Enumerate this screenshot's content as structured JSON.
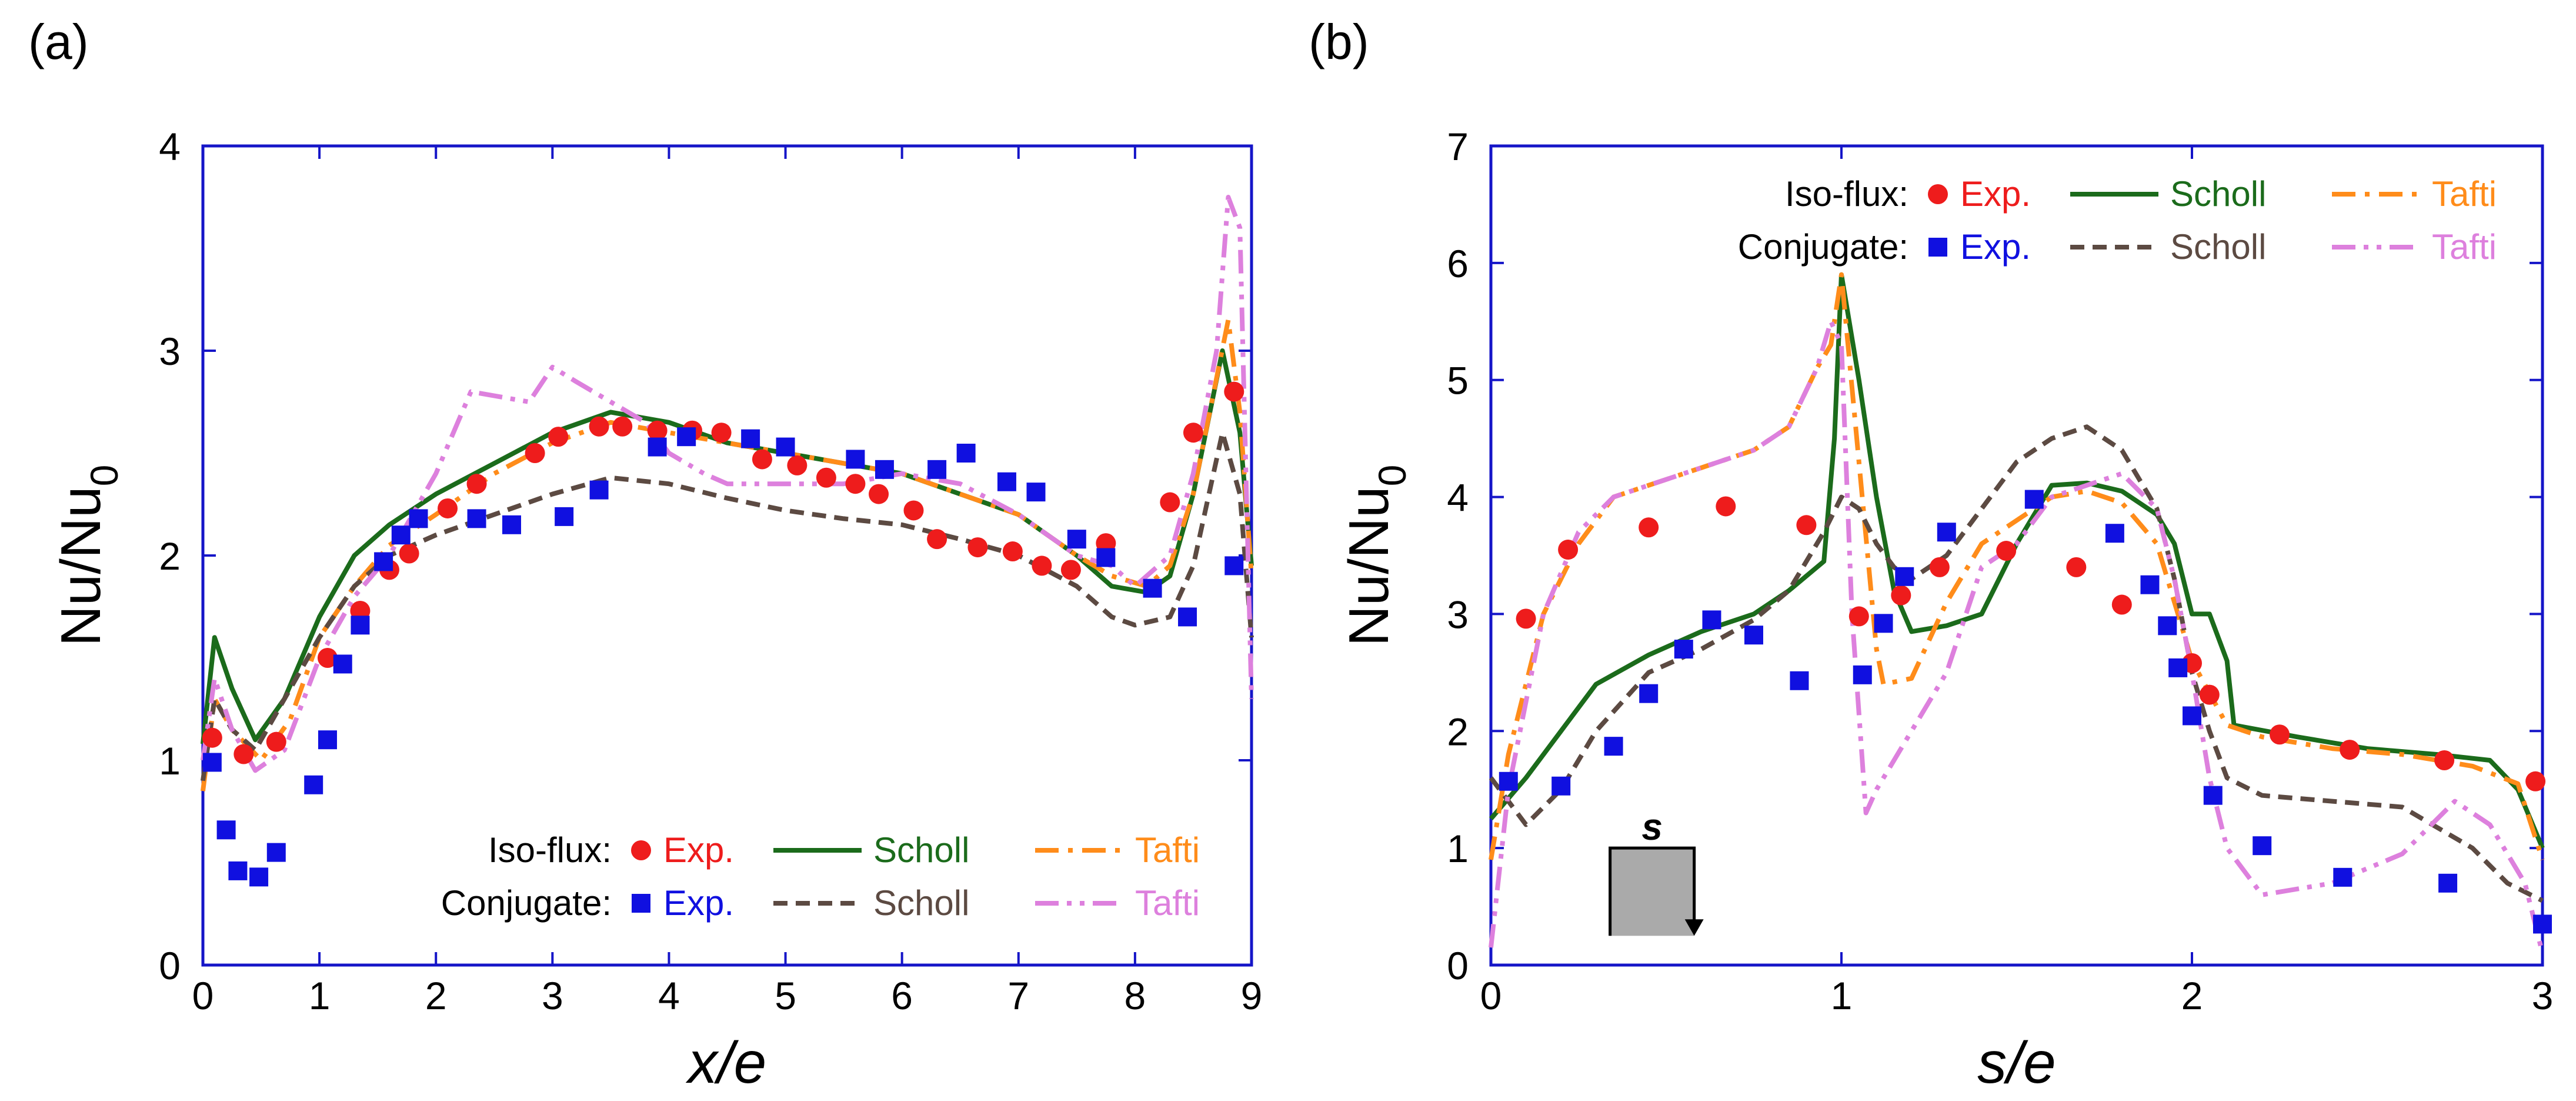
{
  "panel_labels": [
    "(a)",
    "(b)"
  ],
  "chart_data": [
    {
      "type": "line",
      "panel": "(a)",
      "xlabel": "x/e",
      "ylabel_main": "Nu/Nu",
      "ylabel_sub": "0",
      "xlim": [
        0,
        9
      ],
      "ylim": [
        0,
        4
      ],
      "xticks": [
        0,
        1,
        2,
        3,
        4,
        5,
        6,
        7,
        8,
        9
      ],
      "yticks": [
        0,
        1,
        2,
        3,
        4
      ],
      "legend": {
        "placement": "bottom-right",
        "rows": [
          {
            "label": "Iso-flux:",
            "entries": [
              "Exp.",
              "Scholl",
              "Tafti"
            ]
          },
          {
            "label": "Conjugate:",
            "entries": [
              "Exp.",
              "Scholl",
              "Tafti"
            ]
          }
        ]
      },
      "series": [
        {
          "name": "Exp.",
          "group": "Iso-flux",
          "kind": "marker-circle",
          "color": "#ee1c1c",
          "x": [
            0.08,
            0.35,
            0.63,
            1.07,
            1.35,
            1.6,
            1.77,
            2.1,
            2.35,
            2.85,
            3.05,
            3.4,
            3.6,
            3.9,
            4.2,
            4.45,
            4.8,
            5.1,
            5.35,
            5.6,
            5.8,
            6.1,
            6.3,
            6.65,
            6.95,
            7.2,
            7.45,
            7.75,
            8.3,
            8.5,
            8.85
          ],
          "y": [
            1.11,
            1.03,
            1.09,
            1.5,
            1.73,
            1.93,
            2.01,
            2.23,
            2.35,
            2.5,
            2.58,
            2.63,
            2.63,
            2.61,
            2.61,
            2.6,
            2.47,
            2.44,
            2.38,
            2.35,
            2.3,
            2.22,
            2.08,
            2.04,
            2.02,
            1.95,
            1.93,
            2.06,
            2.26,
            2.6,
            2.8
          ]
        },
        {
          "name": "Exp.",
          "group": "Conjugate",
          "kind": "marker-square",
          "color": "#1010e0",
          "x": [
            0.08,
            0.2,
            0.3,
            0.48,
            0.63,
            0.95,
            1.07,
            1.2,
            1.35,
            1.55,
            1.7,
            1.85,
            2.35,
            2.65,
            3.1,
            3.4,
            3.9,
            4.15,
            4.7,
            5.0,
            5.6,
            5.85,
            6.3,
            6.55,
            6.9,
            7.15,
            7.5,
            7.75,
            8.15,
            8.45,
            8.85
          ],
          "y": [
            0.99,
            0.66,
            0.46,
            0.43,
            0.55,
            0.88,
            1.1,
            1.47,
            1.66,
            1.97,
            2.1,
            2.18,
            2.18,
            2.15,
            2.19,
            2.32,
            2.53,
            2.58,
            2.57,
            2.53,
            2.47,
            2.42,
            2.42,
            2.5,
            2.36,
            2.31,
            2.08,
            1.99,
            1.84,
            1.7,
            1.95
          ]
        },
        {
          "name": "Scholl",
          "group": "Iso-flux",
          "kind": "line-solid",
          "color": "#1b6b1b",
          "x": [
            0.0,
            0.1,
            0.25,
            0.45,
            0.7,
            1.0,
            1.3,
            1.6,
            2.0,
            2.5,
            3.0,
            3.5,
            4.0,
            4.5,
            5.0,
            5.5,
            6.0,
            6.5,
            7.0,
            7.5,
            7.8,
            8.1,
            8.3,
            8.5,
            8.75,
            8.9,
            9.0
          ],
          "y": [
            1.08,
            1.6,
            1.35,
            1.1,
            1.3,
            1.7,
            2.0,
            2.15,
            2.3,
            2.45,
            2.6,
            2.7,
            2.65,
            2.55,
            2.5,
            2.45,
            2.4,
            2.3,
            2.2,
            2.0,
            1.85,
            1.82,
            1.9,
            2.3,
            3.0,
            2.6,
            1.95
          ]
        },
        {
          "name": "Tafti",
          "group": "Iso-flux",
          "kind": "line-dashdot",
          "color": "#ff8c1a",
          "x": [
            0.0,
            0.1,
            0.25,
            0.5,
            0.75,
            1.0,
            1.3,
            1.6,
            2.0,
            2.5,
            3.0,
            3.5,
            4.0,
            4.5,
            5.0,
            5.5,
            6.0,
            6.5,
            7.0,
            7.5,
            7.8,
            8.1,
            8.3,
            8.5,
            8.8,
            8.9,
            9.0
          ],
          "y": [
            0.85,
            1.3,
            1.15,
            1.0,
            1.2,
            1.6,
            1.85,
            2.05,
            2.2,
            2.4,
            2.55,
            2.65,
            2.6,
            2.55,
            2.5,
            2.45,
            2.4,
            2.3,
            2.2,
            2.0,
            1.9,
            1.85,
            1.95,
            2.3,
            3.15,
            2.7,
            1.9
          ]
        },
        {
          "name": "Scholl",
          "group": "Conjugate",
          "kind": "line-dashed",
          "color": "#5c4a42",
          "x": [
            0.0,
            0.1,
            0.25,
            0.45,
            0.7,
            1.0,
            1.3,
            1.6,
            2.0,
            2.5,
            3.0,
            3.5,
            4.0,
            4.5,
            5.0,
            5.5,
            6.0,
            6.5,
            7.0,
            7.5,
            7.8,
            8.0,
            8.3,
            8.5,
            8.75,
            8.9,
            9.0
          ],
          "y": [
            0.9,
            1.3,
            1.15,
            1.05,
            1.3,
            1.6,
            1.85,
            2.0,
            2.1,
            2.2,
            2.3,
            2.38,
            2.35,
            2.28,
            2.22,
            2.18,
            2.15,
            2.08,
            2.0,
            1.85,
            1.7,
            1.66,
            1.7,
            1.95,
            2.6,
            2.3,
            1.6
          ]
        },
        {
          "name": "Tafti",
          "group": "Conjugate",
          "kind": "line-dashdotdot",
          "color": "#dd80dd",
          "x": [
            0.0,
            0.1,
            0.25,
            0.45,
            0.7,
            1.0,
            1.3,
            1.6,
            2.0,
            2.3,
            2.5,
            2.8,
            3.0,
            3.2,
            3.5,
            3.8,
            4.0,
            4.3,
            4.5,
            5.0,
            5.5,
            6.0,
            6.5,
            7.0,
            7.5,
            7.8,
            8.0,
            8.3,
            8.5,
            8.7,
            8.8,
            8.9,
            9.0
          ],
          "y": [
            1.0,
            1.4,
            1.15,
            0.95,
            1.05,
            1.5,
            1.8,
            2.0,
            2.4,
            2.8,
            2.78,
            2.75,
            2.92,
            2.85,
            2.75,
            2.65,
            2.5,
            2.4,
            2.35,
            2.35,
            2.35,
            2.4,
            2.35,
            2.2,
            2.0,
            1.95,
            1.85,
            2.0,
            2.4,
            3.0,
            3.75,
            3.6,
            1.3
          ]
        }
      ]
    },
    {
      "type": "line",
      "panel": "(b)",
      "xlabel": "s/e",
      "ylabel_main": "Nu/Nu",
      "ylabel_sub": "0",
      "xlim": [
        0,
        3
      ],
      "ylim": [
        0,
        7
      ],
      "xticks": [
        0,
        1,
        2,
        3
      ],
      "yticks": [
        0,
        1,
        2,
        3,
        4,
        5,
        6,
        7
      ],
      "inset_label": "s",
      "legend": {
        "placement": "top-right",
        "rows": [
          {
            "label": "Iso-flux:",
            "entries": [
              "Exp.",
              "Scholl",
              "Tafti"
            ]
          },
          {
            "label": "Conjugate:",
            "entries": [
              "Exp.",
              "Scholl",
              "Tafti"
            ]
          }
        ]
      },
      "series": [
        {
          "name": "Exp.",
          "group": "Iso-flux",
          "kind": "marker-circle",
          "color": "#ee1c1c",
          "x": [
            0.1,
            0.22,
            0.45,
            0.67,
            0.9,
            1.05,
            1.17,
            1.28,
            1.47,
            1.67,
            1.8,
            2.0,
            2.05,
            2.25,
            2.45,
            2.72,
            2.98
          ],
          "y": [
            2.96,
            3.55,
            3.74,
            3.92,
            3.76,
            2.98,
            3.16,
            3.4,
            3.54,
            3.4,
            3.08,
            2.58,
            2.31,
            1.97,
            1.84,
            1.75,
            1.57
          ]
        },
        {
          "name": "Exp.",
          "group": "Conjugate",
          "kind": "marker-square",
          "color": "#1010e0",
          "x": [
            0.05,
            0.2,
            0.35,
            0.45,
            0.55,
            0.63,
            0.75,
            0.88,
            1.06,
            1.12,
            1.18,
            1.3,
            1.55,
            1.78,
            1.88,
            1.93,
            1.96,
            2.0,
            2.06,
            2.2,
            2.43,
            2.73,
            3.0
          ],
          "y": [
            1.57,
            1.53,
            1.87,
            2.32,
            2.7,
            2.95,
            2.82,
            2.43,
            2.48,
            2.92,
            3.32,
            3.7,
            3.98,
            3.69,
            3.25,
            2.9,
            2.54,
            2.13,
            1.45,
            1.02,
            0.75,
            0.7,
            0.35
          ]
        },
        {
          "name": "Scholl",
          "group": "Iso-flux",
          "kind": "line-solid",
          "color": "#1b6b1b",
          "x": [
            0.0,
            0.1,
            0.2,
            0.3,
            0.45,
            0.6,
            0.75,
            0.85,
            0.95,
            0.98,
            1.0,
            1.05,
            1.1,
            1.15,
            1.2,
            1.3,
            1.4,
            1.5,
            1.6,
            1.7,
            1.8,
            1.9,
            1.95,
            2.0,
            2.05,
            2.1,
            2.12,
            2.3,
            2.5,
            2.7,
            2.85,
            2.93,
            3.0
          ],
          "y": [
            1.25,
            1.6,
            2.0,
            2.4,
            2.65,
            2.85,
            3.0,
            3.2,
            3.45,
            4.5,
            5.9,
            5.0,
            4.0,
            3.2,
            2.85,
            2.9,
            3.0,
            3.6,
            4.1,
            4.12,
            4.05,
            3.85,
            3.6,
            3.0,
            3.0,
            2.6,
            2.05,
            1.95,
            1.85,
            1.8,
            1.75,
            1.5,
            1.0
          ]
        },
        {
          "name": "Tafti",
          "group": "Iso-flux",
          "kind": "line-dashdot",
          "color": "#ff8c1a",
          "x": [
            0.0,
            0.05,
            0.15,
            0.25,
            0.35,
            0.45,
            0.6,
            0.75,
            0.85,
            0.93,
            0.97,
            1.0,
            1.05,
            1.1,
            1.12,
            1.2,
            1.3,
            1.4,
            1.5,
            1.6,
            1.7,
            1.8,
            1.9,
            1.95,
            2.0,
            2.1,
            2.2,
            2.4,
            2.6,
            2.8,
            2.93,
            3.0
          ],
          "y": [
            0.9,
            1.8,
            3.0,
            3.6,
            4.0,
            4.1,
            4.25,
            4.4,
            4.6,
            5.1,
            5.3,
            5.9,
            4.3,
            2.7,
            2.4,
            2.45,
            3.1,
            3.6,
            3.8,
            4.0,
            4.05,
            3.95,
            3.6,
            3.1,
            2.6,
            2.05,
            1.95,
            1.85,
            1.8,
            1.7,
            1.55,
            0.9
          ]
        },
        {
          "name": "Scholl",
          "group": "Conjugate",
          "kind": "line-dashed",
          "color": "#5c4a42",
          "x": [
            0.0,
            0.1,
            0.2,
            0.3,
            0.45,
            0.6,
            0.75,
            0.85,
            0.95,
            1.0,
            1.05,
            1.1,
            1.15,
            1.2,
            1.3,
            1.4,
            1.5,
            1.6,
            1.7,
            1.8,
            1.9,
            1.95,
            2.0,
            2.05,
            2.1,
            2.2,
            2.4,
            2.6,
            2.8,
            2.9,
            3.0
          ],
          "y": [
            1.6,
            1.2,
            1.5,
            2.0,
            2.5,
            2.7,
            2.95,
            3.2,
            3.7,
            4.0,
            3.9,
            3.6,
            3.4,
            3.3,
            3.5,
            3.9,
            4.3,
            4.5,
            4.6,
            4.4,
            3.9,
            3.3,
            2.5,
            2.0,
            1.6,
            1.45,
            1.4,
            1.35,
            1.0,
            0.7,
            0.55
          ]
        },
        {
          "name": "Tafti",
          "group": "Conjugate",
          "kind": "line-dashdotdot",
          "color": "#dd80dd",
          "x": [
            0.0,
            0.05,
            0.15,
            0.25,
            0.35,
            0.45,
            0.6,
            0.75,
            0.85,
            0.93,
            0.97,
            1.0,
            1.03,
            1.07,
            1.1,
            1.2,
            1.3,
            1.4,
            1.5,
            1.6,
            1.7,
            1.8,
            1.9,
            1.95,
            2.0,
            2.05,
            2.1,
            2.2,
            2.4,
            2.6,
            2.75,
            2.85,
            2.95,
            3.0
          ],
          "y": [
            0.15,
            1.5,
            3.0,
            3.7,
            4.0,
            4.1,
            4.25,
            4.4,
            4.6,
            5.1,
            5.5,
            5.3,
            3.0,
            1.3,
            1.5,
            2.0,
            2.5,
            3.4,
            3.6,
            4.0,
            4.1,
            4.2,
            3.9,
            3.3,
            2.5,
            1.6,
            1.0,
            0.6,
            0.7,
            0.95,
            1.4,
            1.2,
            0.7,
            0.1
          ]
        }
      ]
    }
  ]
}
